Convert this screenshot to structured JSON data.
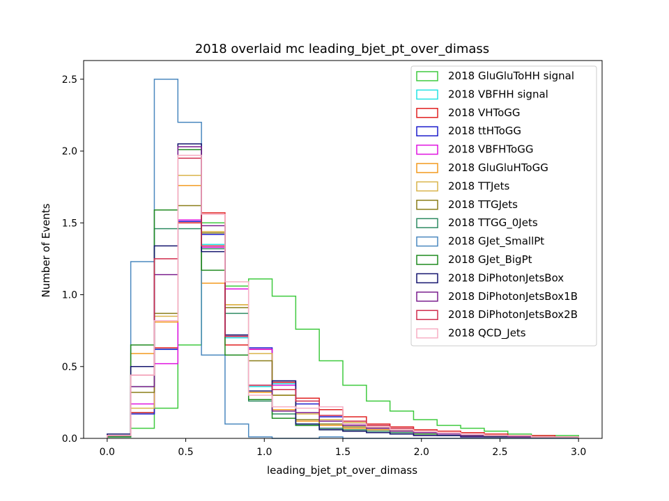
{
  "chart_data": {
    "type": "histogram-step",
    "title": "2018 overlaid mc leading_bjet_pt_over_dimass",
    "xlabel": "leading_bjet_pt_over_dimass",
    "ylabel": "Number of Events",
    "xlim": [
      -0.15,
      3.15
    ],
    "ylim": [
      0,
      2.63
    ],
    "x_ticks": [
      0.0,
      0.5,
      1.0,
      1.5,
      2.0,
      2.5,
      3.0
    ],
    "x_tick_labels": [
      "0.0",
      "0.5",
      "1.0",
      "1.5",
      "2.0",
      "2.5",
      "3.0"
    ],
    "y_ticks": [
      0.0,
      0.5,
      1.0,
      1.5,
      2.0,
      2.5
    ],
    "y_tick_labels": [
      "0.0",
      "0.5",
      "1.0",
      "1.5",
      "2.0",
      "2.5"
    ],
    "legend_position": "top-right",
    "bin_edges": [
      0,
      0.15,
      0.3,
      0.45,
      0.6,
      0.75,
      0.9,
      1.05,
      1.2,
      1.35,
      1.5,
      1.65,
      1.8,
      1.95,
      2.1,
      2.25,
      2.4,
      2.55,
      2.7,
      2.85,
      3.0
    ],
    "series": [
      {
        "name": "2018 GluGluToHH signal",
        "color": "#3fca3f",
        "values": [
          0.01,
          0.07,
          0.21,
          0.65,
          1.5,
          1.06,
          1.11,
          0.99,
          0.76,
          0.54,
          0.37,
          0.26,
          0.19,
          0.13,
          0.09,
          0.07,
          0.05,
          0.03,
          0.02,
          0.02
        ]
      },
      {
        "name": "2018 VBFHH signal",
        "color": "#22e3e3",
        "values": [
          0.01,
          0.18,
          0.62,
          1.5,
          1.35,
          0.7,
          0.36,
          0.38,
          0.1,
          0.07,
          0.05,
          0.04,
          0.03,
          0.03,
          0.02,
          0.02,
          0.02,
          0.01,
          0.01,
          0.01
        ]
      },
      {
        "name": "2018 VHToGG",
        "color": "#e02020",
        "values": [
          0.02,
          0.18,
          0.63,
          1.5,
          1.57,
          0.65,
          0.62,
          0.39,
          0.28,
          0.2,
          0.15,
          0.1,
          0.08,
          0.06,
          0.05,
          0.04,
          0.03,
          0.02,
          0.02,
          0.01
        ]
      },
      {
        "name": "2018 ttHToGG",
        "color": "#1c1ccc",
        "values": [
          0.02,
          0.17,
          0.62,
          1.51,
          1.42,
          0.71,
          0.63,
          0.4,
          0.24,
          0.15,
          0.1,
          0.07,
          0.05,
          0.04,
          0.03,
          0.02,
          0.02,
          0.01,
          0.01,
          0.01
        ]
      },
      {
        "name": "2018 VBFHToGG",
        "color": "#e012e0",
        "values": [
          0.02,
          0.24,
          0.52,
          1.52,
          1.33,
          1.04,
          0.62,
          0.37,
          0.12,
          0.07,
          0.05,
          0.04,
          0.03,
          0.02,
          0.02,
          0.01,
          0.01,
          0.01,
          0.01,
          0.01
        ]
      },
      {
        "name": "2018 GluGluHToGG",
        "color": "#f39a1e",
        "values": [
          0.02,
          0.59,
          0.81,
          1.76,
          1.08,
          0.93,
          0.32,
          0.2,
          0.12,
          0.09,
          0.07,
          0.06,
          0.05,
          0.04,
          0.03,
          0.02,
          0.02,
          0.01,
          0.01,
          0.01
        ]
      },
      {
        "name": "2018 TTJets",
        "color": "#d9b44a",
        "values": [
          0.02,
          0.21,
          0.85,
          1.83,
          1.44,
          0.93,
          0.59,
          0.3,
          0.17,
          0.13,
          0.11,
          0.08,
          0.06,
          0.05,
          0.04,
          0.03,
          0.02,
          0.02,
          0.01,
          0.01
        ]
      },
      {
        "name": "2018 TTGJets",
        "color": "#8a7d18",
        "values": [
          0.02,
          0.32,
          0.87,
          1.62,
          1.43,
          0.91,
          0.54,
          0.3,
          0.13,
          0.1,
          0.08,
          0.07,
          0.05,
          0.04,
          0.03,
          0.02,
          0.02,
          0.01,
          0.01,
          0.01
        ]
      },
      {
        "name": "2018 TTGG_0Jets",
        "color": "#2e8b62",
        "values": [
          0.02,
          0.36,
          1.46,
          1.46,
          1.32,
          0.87,
          0.26,
          0.17,
          0.09,
          0.07,
          0.06,
          0.05,
          0.04,
          0.03,
          0.03,
          0.02,
          0.02,
          0.01,
          0.01,
          0.01
        ]
      },
      {
        "name": "2018 GJet_SmallPt",
        "color": "#4a88bf",
        "values": [
          0.01,
          1.23,
          2.5,
          2.2,
          0.58,
          0.1,
          0.01,
          0.0,
          0.0,
          0.01,
          0.0,
          0.0,
          0.0,
          0.0,
          0.0,
          0.0,
          0.0,
          0.0,
          0.0,
          0.0
        ]
      },
      {
        "name": "2018 GJet_BigPt",
        "color": "#1f8a1f",
        "values": [
          0.01,
          0.65,
          1.59,
          2.01,
          1.17,
          0.58,
          0.27,
          0.14,
          0.09,
          0.06,
          0.05,
          0.04,
          0.03,
          0.03,
          0.02,
          0.02,
          0.01,
          0.01,
          0.01,
          0.01
        ]
      },
      {
        "name": "2018 DiPhotonJetsBox",
        "color": "#14146e",
        "values": [
          0.03,
          0.5,
          1.34,
          2.05,
          1.3,
          0.72,
          0.33,
          0.4,
          0.1,
          0.06,
          0.05,
          0.04,
          0.03,
          0.02,
          0.02,
          0.01,
          0.01,
          0.01,
          0.01,
          0.01
        ]
      },
      {
        "name": "2018 DiPhotonJetsBox1B",
        "color": "#7b1f8e",
        "values": [
          0.02,
          0.36,
          1.14,
          2.03,
          1.48,
          0.71,
          0.37,
          0.19,
          0.18,
          0.12,
          0.09,
          0.07,
          0.05,
          0.04,
          0.03,
          0.02,
          0.02,
          0.01,
          0.01,
          0.01
        ]
      },
      {
        "name": "2018 DiPhotonJetsBox2B",
        "color": "#d02c4c",
        "values": [
          0.02,
          0.44,
          1.25,
          1.95,
          1.34,
          0.71,
          0.37,
          0.34,
          0.26,
          0.16,
          0.12,
          0.09,
          0.07,
          0.05,
          0.04,
          0.03,
          0.02,
          0.02,
          0.01,
          0.01
        ]
      },
      {
        "name": "2018 QCD_Jets",
        "color": "#f7aec4",
        "values": [
          0.02,
          0.44,
          0.82,
          1.97,
          1.56,
          1.09,
          0.3,
          0.22,
          0.21,
          0.22,
          0.1,
          0.08,
          0.06,
          0.05,
          0.04,
          0.03,
          0.02,
          0.02,
          0.01,
          0.01
        ]
      }
    ]
  }
}
